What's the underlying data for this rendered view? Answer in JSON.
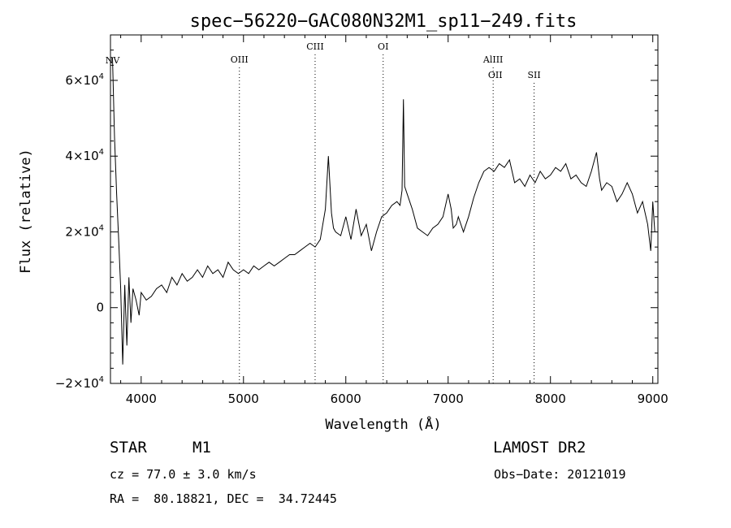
{
  "chart_data": {
    "type": "line",
    "title": "spec−56220−GAC080N32M1_sp11−249.fits",
    "xlabel": "Wavelength (Å)",
    "ylabel": "Flux (relative)",
    "xlim": [
      3700,
      9050
    ],
    "ylim": [
      -20000,
      72000
    ],
    "grid": false,
    "x_ticks": [
      4000,
      5000,
      6000,
      7000,
      8000,
      9000
    ],
    "y_ticks": [
      {
        "value": -20000,
        "label": "−2×10",
        "exp": "4"
      },
      {
        "value": 0,
        "label": "0",
        "exp": ""
      },
      {
        "value": 20000,
        "label": "2×10",
        "exp": "4"
      },
      {
        "value": 40000,
        "label": "4×10",
        "exp": "4"
      },
      {
        "value": 60000,
        "label": "6×10",
        "exp": "4"
      }
    ],
    "spectral_lines": [
      {
        "name": "NV",
        "wavelength": 3720,
        "label_level": 1,
        "dotted": false
      },
      {
        "name": "OIII",
        "wavelength": 4960,
        "label_level": 2,
        "dotted": true
      },
      {
        "name": "CIII",
        "wavelength": 5700,
        "label_level": 0,
        "dotted": true
      },
      {
        "name": "OI",
        "wavelength": 6365,
        "label_level": 0,
        "dotted": true
      },
      {
        "name": "AlIII",
        "wavelength": 7440,
        "label_level": 2,
        "dotted": true
      },
      {
        "name": "OII",
        "wavelength": 7460,
        "label_level": 3,
        "dotted": false
      },
      {
        "name": "SII",
        "wavelength": 7840,
        "label_level": 3,
        "dotted": true
      }
    ],
    "series": [
      {
        "x": [
          3720,
          3740,
          3760,
          3780,
          3800,
          3820,
          3840,
          3860,
          3880,
          3900,
          3920,
          3950,
          3980,
          4000,
          4050,
          4100,
          4150,
          4200,
          4250,
          4300,
          4350,
          4400,
          4450,
          4500,
          4550,
          4600,
          4650,
          4700,
          4750,
          4800,
          4850,
          4900,
          4950,
          5000,
          5050,
          5100,
          5150,
          5200,
          5250,
          5300,
          5350,
          5400,
          5450,
          5500,
          5550,
          5600,
          5650,
          5700,
          5750,
          5800,
          5830,
          5860,
          5880,
          5900,
          5950,
          6000,
          6050,
          6100,
          6150,
          6200,
          6250,
          6300,
          6350,
          6400,
          6450,
          6500,
          6530,
          6550,
          6563,
          6575,
          6600,
          6650,
          6700,
          6750,
          6800,
          6850,
          6900,
          6950,
          7000,
          7030,
          7050,
          7080,
          7100,
          7150,
          7200,
          7250,
          7300,
          7350,
          7400,
          7450,
          7500,
          7550,
          7600,
          7650,
          7700,
          7750,
          7800,
          7850,
          7900,
          7950,
          8000,
          8050,
          8100,
          8150,
          8200,
          8250,
          8300,
          8350,
          8400,
          8450,
          8480,
          8500,
          8550,
          8600,
          8650,
          8700,
          8750,
          8800,
          8850,
          8900,
          8950,
          8980,
          9000,
          9020
        ],
        "y": [
          66000,
          45000,
          30000,
          18000,
          5000,
          -15000,
          6000,
          -10000,
          8000,
          -4000,
          5000,
          2000,
          -2000,
          4000,
          2000,
          3000,
          5000,
          6000,
          4000,
          8000,
          6000,
          9000,
          7000,
          8000,
          10000,
          8000,
          11000,
          9000,
          10000,
          8000,
          12000,
          10000,
          9000,
          10000,
          9000,
          11000,
          10000,
          11000,
          12000,
          11000,
          12000,
          13000,
          14000,
          14000,
          15000,
          16000,
          17000,
          16000,
          18000,
          26000,
          40000,
          25000,
          21000,
          20000,
          19000,
          24000,
          18000,
          26000,
          19000,
          22000,
          15000,
          20000,
          24000,
          25000,
          27000,
          28000,
          27000,
          31000,
          55000,
          32000,
          30000,
          26000,
          21000,
          20000,
          19000,
          21000,
          22000,
          24000,
          30000,
          26000,
          21000,
          22000,
          24000,
          20000,
          24000,
          29000,
          33000,
          36000,
          37000,
          36000,
          38000,
          37000,
          39000,
          33000,
          34000,
          32000,
          35000,
          33000,
          36000,
          34000,
          35000,
          37000,
          36000,
          38000,
          34000,
          35000,
          33000,
          32000,
          36000,
          41000,
          34000,
          31000,
          33000,
          32000,
          28000,
          30000,
          33000,
          30000,
          25000,
          28000,
          22000,
          15000,
          28000,
          20000
        ]
      }
    ]
  },
  "footer": {
    "object_class": "STAR",
    "subclass": "M1",
    "survey": "LAMOST DR2",
    "cz": "cz = 77.0 ± 3.0 km/s",
    "obs_date": "Obs−Date: 20121019",
    "coords": "RA =  80.18821, DEC =  34.72445"
  }
}
